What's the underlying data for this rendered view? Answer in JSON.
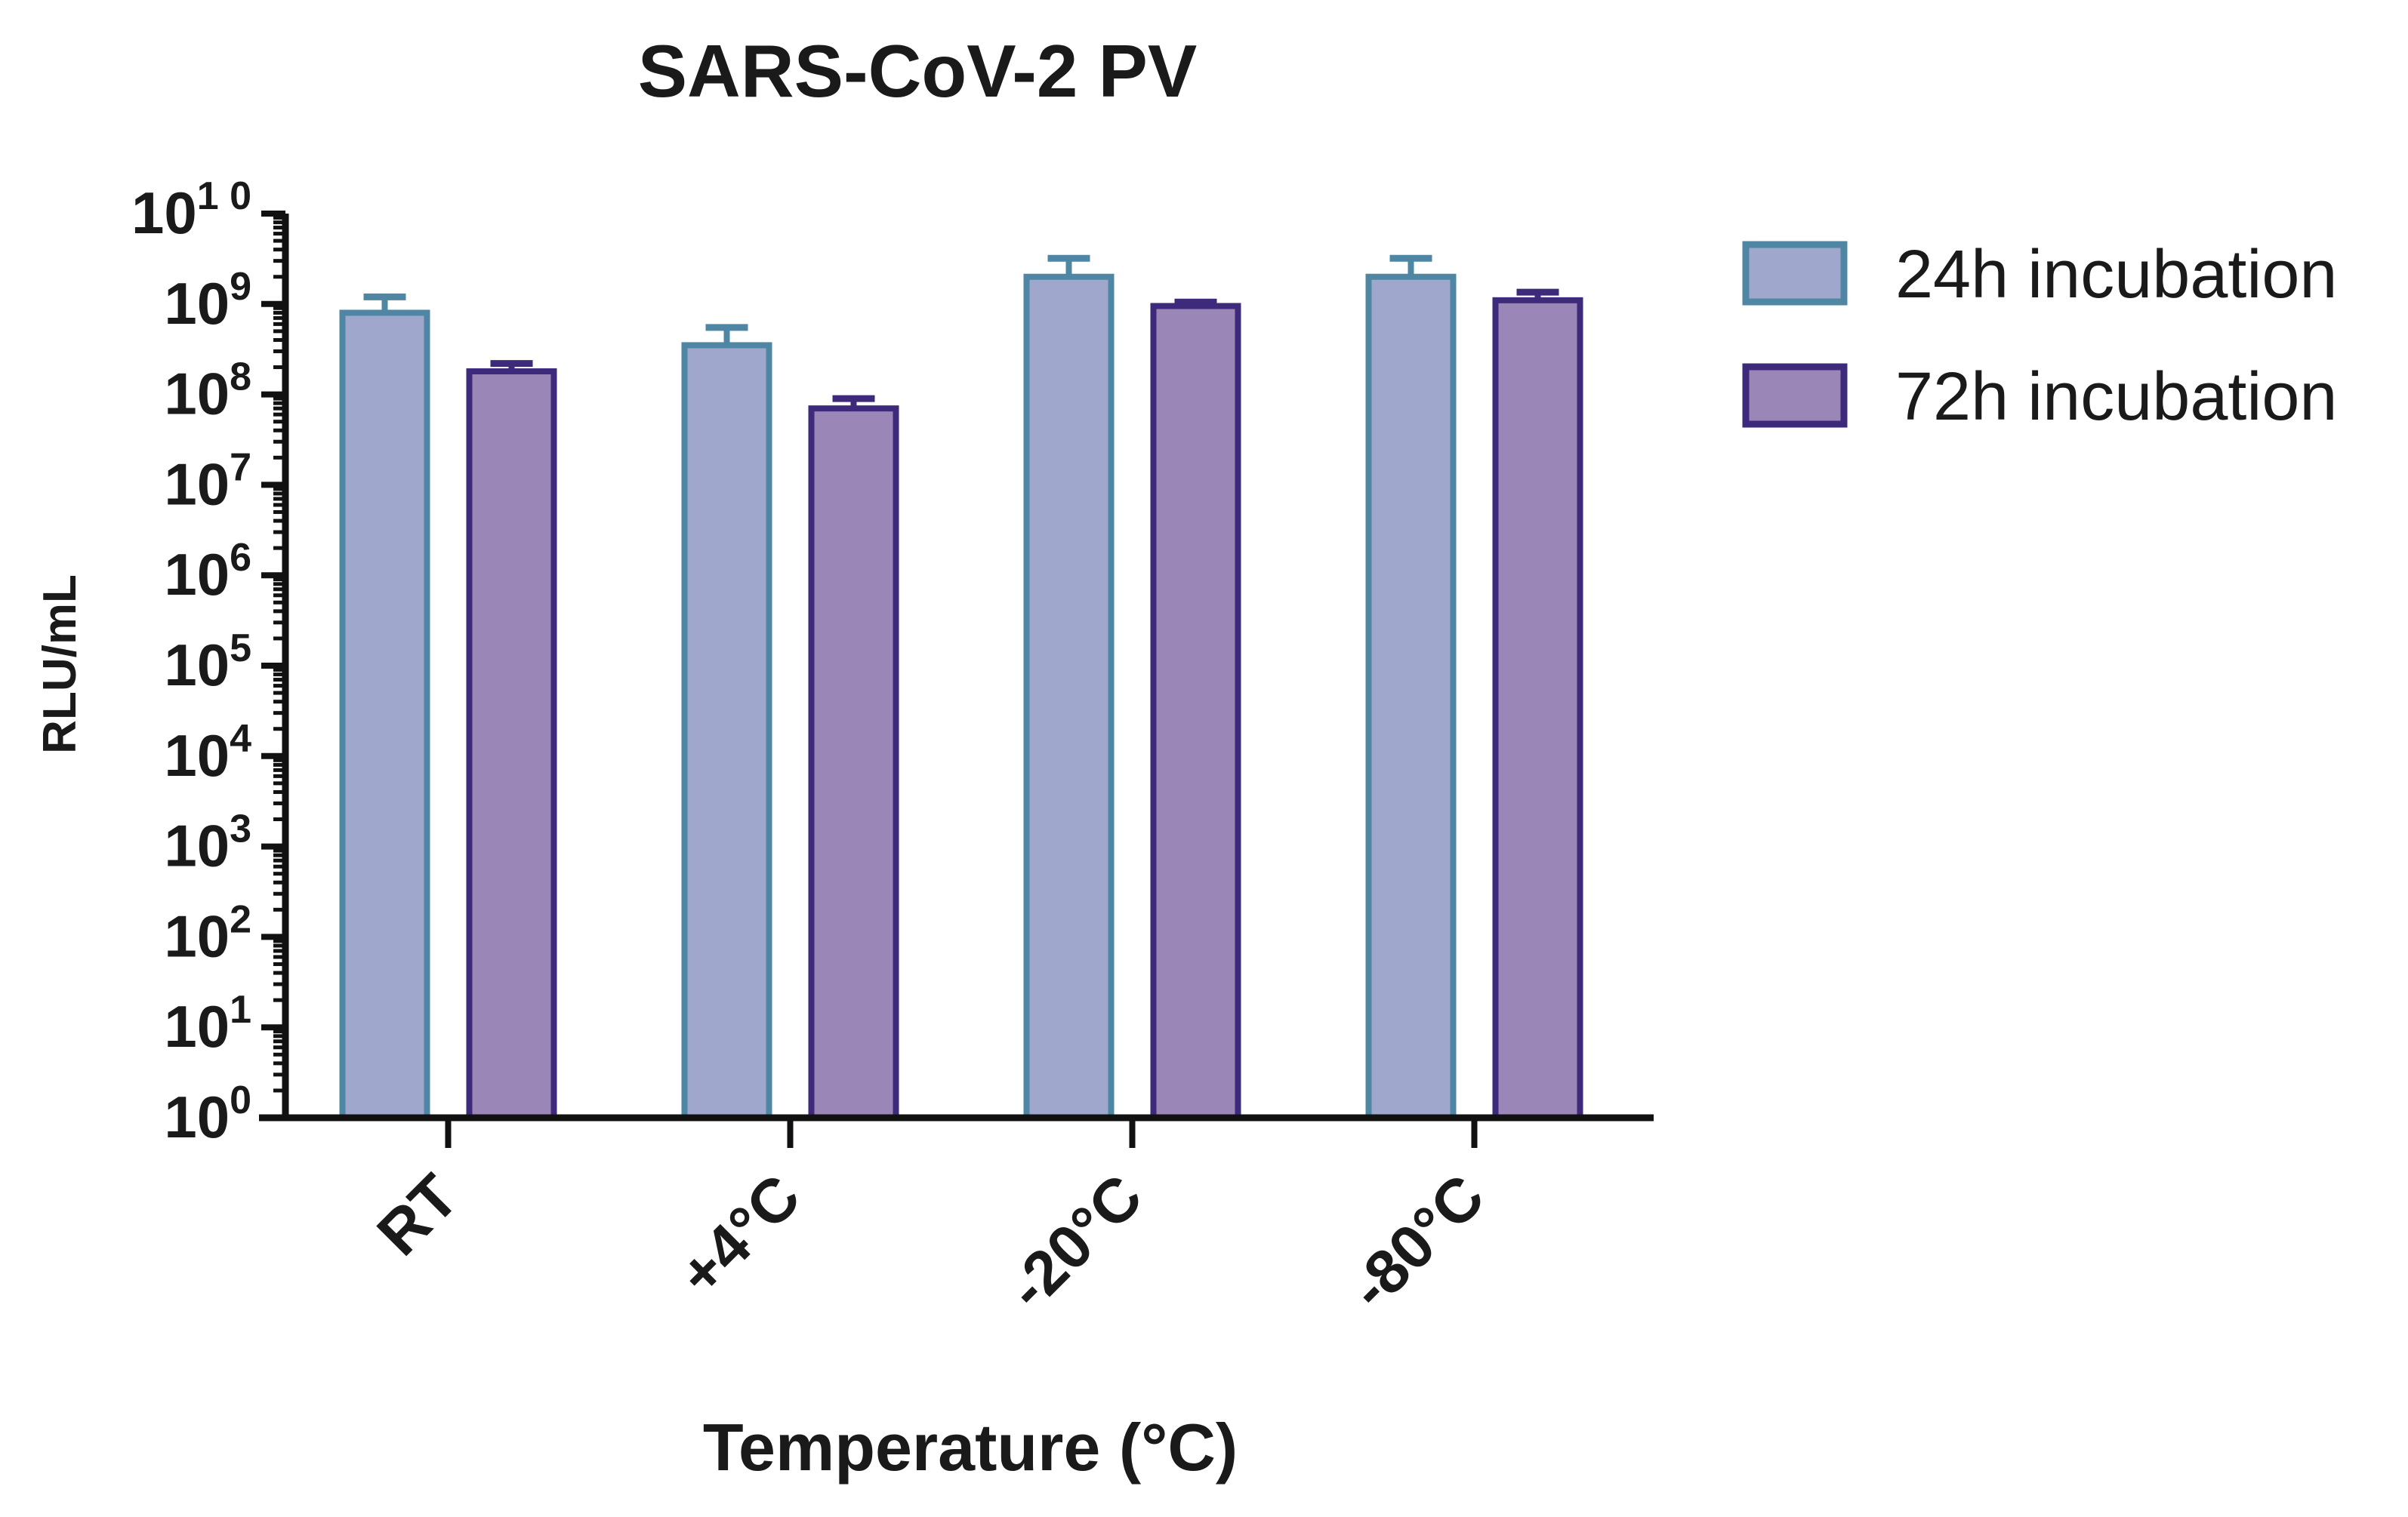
{
  "chart_data": {
    "type": "bar",
    "title": "SARS-CoV-2 PV",
    "xlabel": "Temperature (°C)",
    "ylabel": "RLU/mL",
    "y_scale": "log",
    "ylim": [
      1,
      10000000000
    ],
    "y_ticks": [
      {
        "base": "10",
        "exp": "0"
      },
      {
        "base": "10",
        "exp": "1"
      },
      {
        "base": "10",
        "exp": "2"
      },
      {
        "base": "10",
        "exp": "3"
      },
      {
        "base": "10",
        "exp": "4"
      },
      {
        "base": "10",
        "exp": "5"
      },
      {
        "base": "10",
        "exp": "6"
      },
      {
        "base": "10",
        "exp": "7"
      },
      {
        "base": "10",
        "exp": "8"
      },
      {
        "base": "10",
        "exp": "9"
      },
      {
        "base": "10",
        "exp": "1 0"
      }
    ],
    "categories": [
      "RT",
      "+4°C",
      "-20°C",
      "-80°C"
    ],
    "legend_position": "top-right",
    "grid": false,
    "series": [
      {
        "name": "24h incubation",
        "fill": "#9fa8cc",
        "stroke": "#4f86a3",
        "values": [
          800000000,
          350000000,
          2000000000,
          2000000000
        ],
        "error_upper": [
          1200000000,
          550000000,
          3200000000,
          3200000000
        ]
      },
      {
        "name": "72h incubation",
        "fill": "#9a87b7",
        "stroke": "#3e2a7a",
        "values": [
          180000000,
          70000000,
          950000000,
          1100000000
        ],
        "error_upper": [
          220000000,
          90000000,
          1050000000,
          1350000000
        ]
      }
    ]
  }
}
